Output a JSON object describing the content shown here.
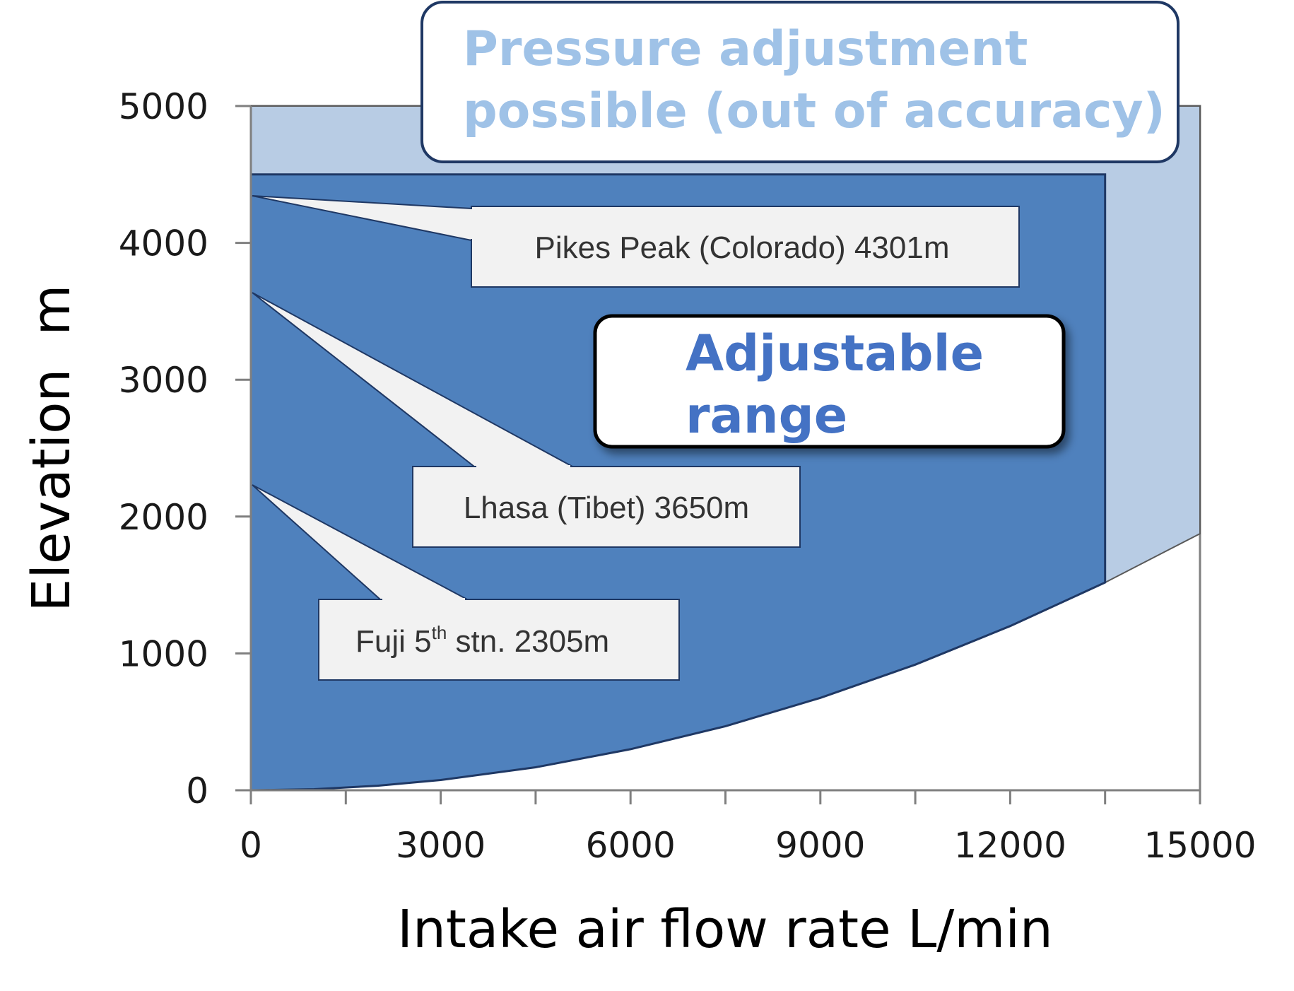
{
  "chart_data": {
    "type": "area",
    "xlabel": "Intake air flow rate L/min",
    "ylabel": "Elevation  m",
    "xlim": [
      0,
      15000
    ],
    "ylim": [
      0,
      5000
    ],
    "xticks": [
      "0",
      "3000",
      "6000",
      "9000",
      "12000",
      "15000"
    ],
    "yticks": [
      "0",
      "1000",
      "2000",
      "3000",
      "4000",
      "5000"
    ],
    "grid": false,
    "regions": [
      {
        "name": "Pressure adjustment possible (out of accuracy)",
        "color": "#b8cce4",
        "x_range": [
          0,
          15000
        ],
        "y_top": 5000,
        "lower_boundary": [
          [
            0,
            0
          ],
          [
            1000,
            8
          ],
          [
            2000,
            33
          ],
          [
            3000,
            75
          ],
          [
            4500,
            168
          ],
          [
            6000,
            300
          ],
          [
            7500,
            468
          ],
          [
            9000,
            675
          ],
          [
            10500,
            918
          ],
          [
            12000,
            1200
          ],
          [
            13500,
            1518
          ],
          [
            15000,
            1875
          ]
        ]
      },
      {
        "name": "Adjustable range",
        "color": "#4f81bd",
        "x_range": [
          0,
          13500
        ],
        "y_top": 4500,
        "lower_boundary": [
          [
            0,
            0
          ],
          [
            1000,
            8
          ],
          [
            2000,
            33
          ],
          [
            3000,
            75
          ],
          [
            4500,
            168
          ],
          [
            6000,
            300
          ],
          [
            7500,
            468
          ],
          [
            9000,
            675
          ],
          [
            10500,
            918
          ],
          [
            12000,
            1200
          ],
          [
            13500,
            1518
          ]
        ]
      }
    ],
    "annotations": [
      {
        "label": "Pikes Peak (Colorado) 4301m",
        "elevation": 4301
      },
      {
        "label": "Lhasa (Tibet) 3650m",
        "elevation": 3650
      },
      {
        "label_main": "Fuji 5",
        "label_sup": "th",
        "label_rest": " stn. 2305m",
        "elevation": 2305
      }
    ],
    "boxes": {
      "out_of_accuracy": {
        "line1": "Pressure adjustment",
        "line2": "possible (out of accuracy)"
      },
      "adjustable": {
        "line1": "Adjustable",
        "line2": "range"
      }
    },
    "colors": {
      "out_of_accuracy_fill": "#b8cce4",
      "adjustable_fill": "#4f81bd",
      "callout_fill": "#f2f2f2",
      "box_border": "#1f3864"
    }
  }
}
